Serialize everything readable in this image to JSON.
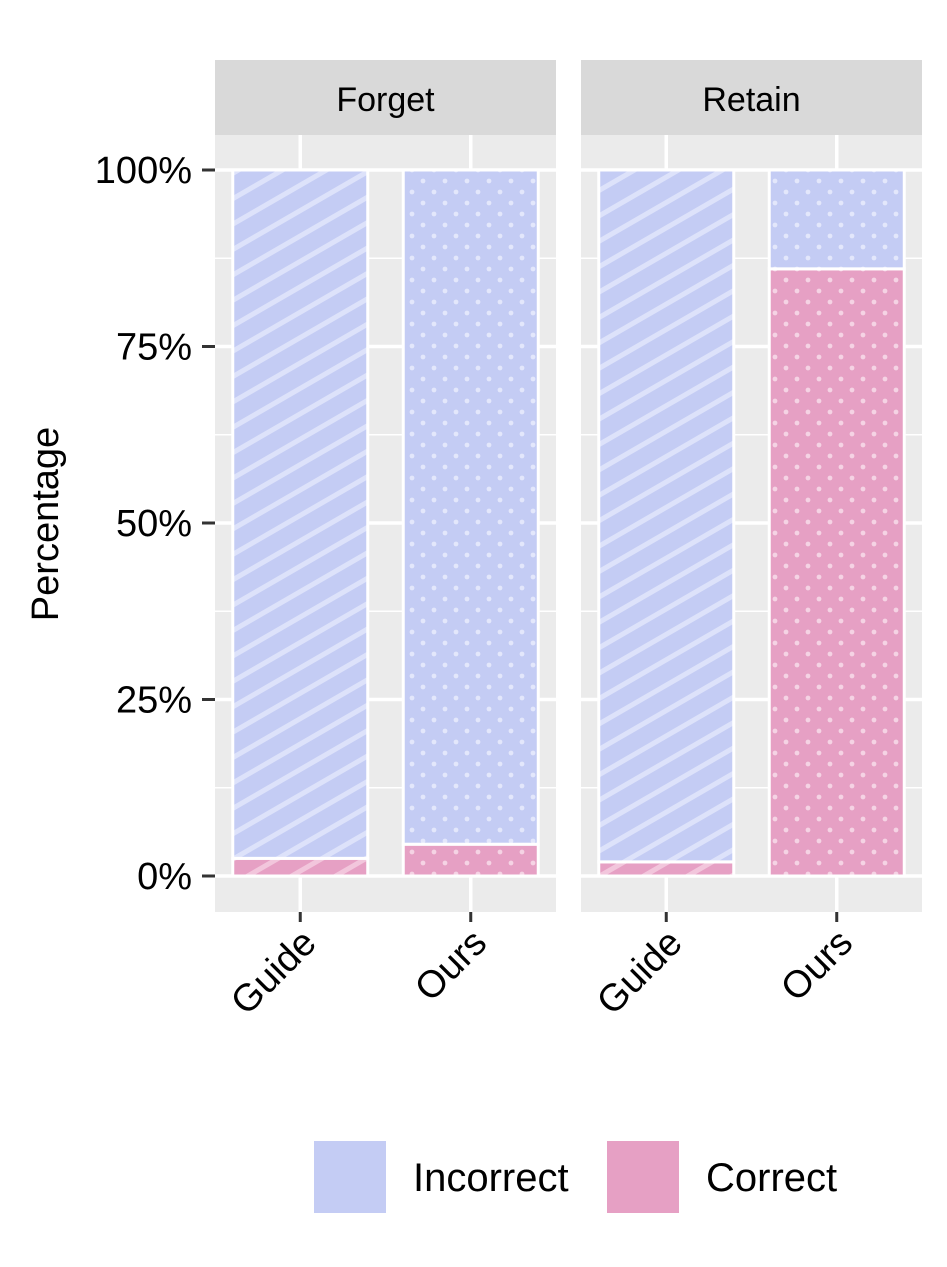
{
  "chart_data": {
    "type": "bar",
    "stacked": true,
    "ylabel": "Percentage",
    "y_ticks": [
      "0%",
      "25%",
      "50%",
      "75%",
      "100%"
    ],
    "ylim": [
      0,
      100
    ],
    "facets": [
      {
        "label": "Forget",
        "categories": [
          "Guide",
          "Ours"
        ],
        "series": [
          {
            "name": "Correct",
            "values": [
              2.5,
              4.5
            ]
          },
          {
            "name": "Incorrect",
            "values": [
              97.5,
              95.5
            ]
          }
        ]
      },
      {
        "label": "Retain",
        "categories": [
          "Guide",
          "Ours"
        ],
        "series": [
          {
            "name": "Correct",
            "values": [
              2.0,
              86.0
            ]
          },
          {
            "name": "Incorrect",
            "values": [
              98.0,
              14.0
            ]
          }
        ]
      }
    ],
    "bar_patterns": {
      "Guide": "stripe",
      "Ours": "dots"
    },
    "legend": {
      "position": "bottom",
      "entries": [
        {
          "label": "Incorrect",
          "color": "#c4ccf4"
        },
        {
          "label": "Correct",
          "color": "#e6a0c4"
        }
      ]
    },
    "colors": {
      "Incorrect": "#c4ccf4",
      "Correct": "#e6a0c4",
      "panel_bg": "#ebebeb",
      "strip_bg": "#d9d9d9",
      "grid": "#ffffff"
    },
    "grid": true
  }
}
